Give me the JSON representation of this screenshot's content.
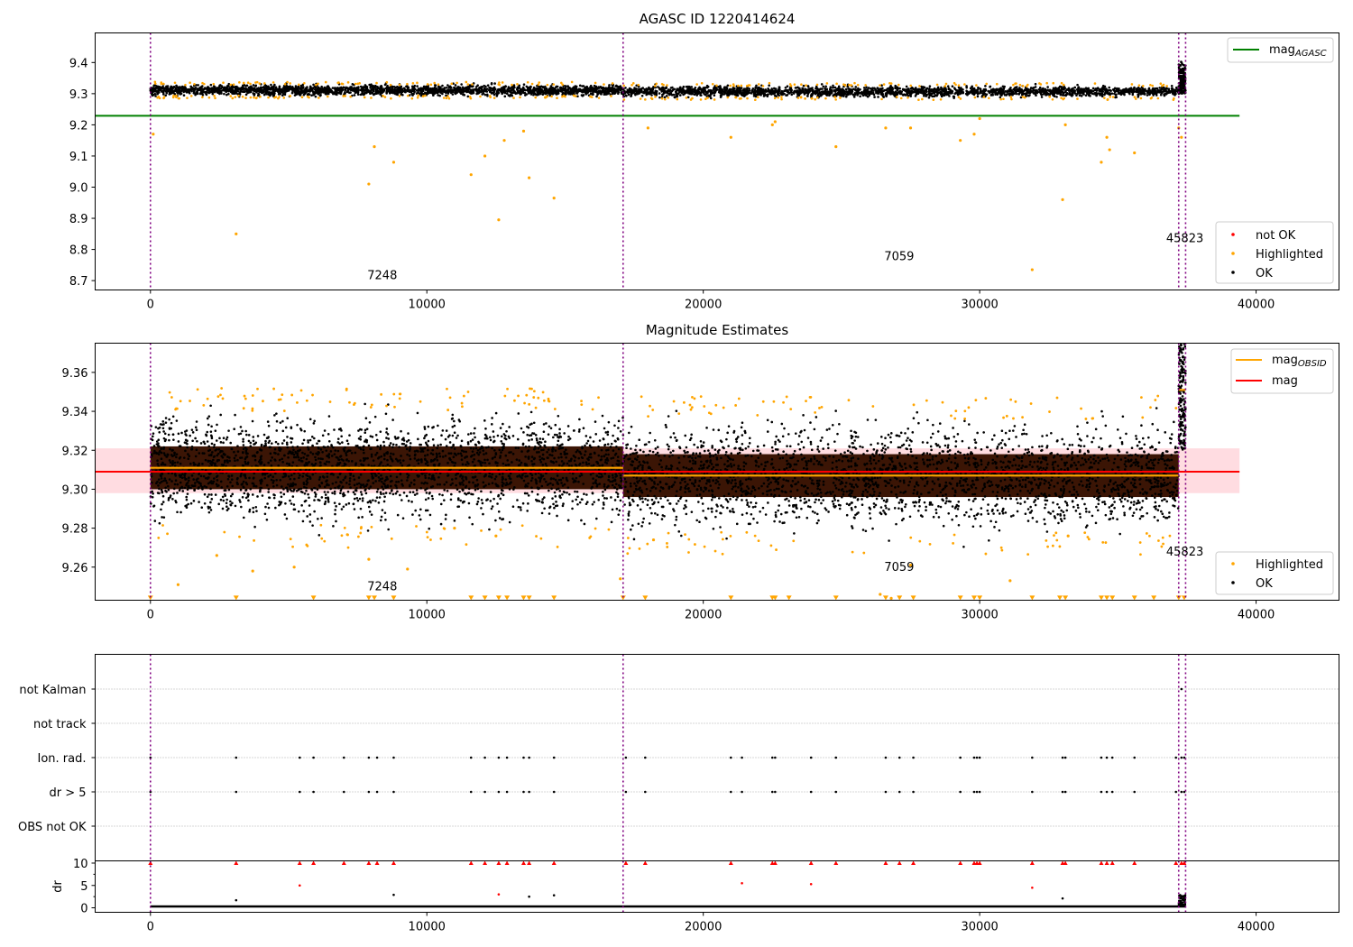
{
  "chart_data": [
    {
      "type": "scatter",
      "title": "AGASC ID 1220414624",
      "xlim": [
        -2000,
        43000
      ],
      "ylim": [
        8.67,
        9.495
      ],
      "xticks": [
        "0",
        "10000",
        "20000",
        "30000",
        "40000"
      ],
      "xtick_values": [
        0,
        10000,
        20000,
        30000,
        40000
      ],
      "yticks": [
        "8.7",
        "8.8",
        "8.9",
        "9.0",
        "9.1",
        "9.2",
        "9.3",
        "9.4"
      ],
      "ytick_values": [
        8.7,
        8.8,
        8.9,
        9.0,
        9.1,
        9.2,
        9.3,
        9.4
      ],
      "obs_boundaries": [
        0,
        17100,
        37200,
        37450
      ],
      "obs_labels": [
        {
          "text": "7248",
          "x": 8500,
          "y": 8.705
        },
        {
          "text": "7059",
          "x": 27200,
          "y": 8.765
        },
        {
          "text": "45823",
          "x": 37400,
          "y": 8.823
        }
      ],
      "agasc_mag": 9.229,
      "agasc_line_x": [
        -2000,
        39400
      ],
      "ok_bands": [
        {
          "x": [
            0,
            17100
          ],
          "center": 9.311,
          "spread": 0.013
        },
        {
          "x": [
            17100,
            37200
          ],
          "center": 9.307,
          "spread": 0.013
        }
      ],
      "ok_burst": {
        "x": [
          37200,
          37450
        ],
        "y": [
          9.3,
          9.42
        ]
      },
      "highlighted_points": [
        [
          100,
          9.17
        ],
        [
          3100,
          8.85
        ],
        [
          7900,
          9.01
        ],
        [
          8100,
          9.13
        ],
        [
          8800,
          9.08
        ],
        [
          11600,
          9.04
        ],
        [
          12100,
          9.1
        ],
        [
          12800,
          9.15
        ],
        [
          12600,
          8.895
        ],
        [
          13500,
          9.18
        ],
        [
          13700,
          9.03
        ],
        [
          14600,
          8.965
        ],
        [
          18000,
          9.19
        ],
        [
          21000,
          9.16
        ],
        [
          22500,
          9.2
        ],
        [
          22600,
          9.21
        ],
        [
          24800,
          9.13
        ],
        [
          26600,
          9.19
        ],
        [
          27500,
          9.19
        ],
        [
          29300,
          9.15
        ],
        [
          29800,
          9.17
        ],
        [
          30000,
          9.22
        ],
        [
          31900,
          8.735
        ],
        [
          33000,
          8.96
        ],
        [
          33100,
          9.2
        ],
        [
          34400,
          9.08
        ],
        [
          34600,
          9.16
        ],
        [
          34700,
          9.12
        ],
        [
          35600,
          9.11
        ],
        [
          37200,
          9.19
        ],
        [
          37300,
          9.16
        ]
      ],
      "legend": {
        "items": [
          {
            "label": "mag",
            "sub": "AGASC",
            "kind": "line",
            "color": "#008000"
          },
          {
            "label": "not OK",
            "kind": "point",
            "color": "#ff0000"
          },
          {
            "label": "Highlighted",
            "kind": "point",
            "color": "#ffa500"
          },
          {
            "label": "OK",
            "kind": "point",
            "color": "#000000"
          }
        ]
      }
    },
    {
      "type": "scatter",
      "title": "Magnitude Estimates",
      "xlim": [
        -2000,
        43000
      ],
      "ylim": [
        9.243,
        9.375
      ],
      "xticks": [
        "0",
        "10000",
        "20000",
        "30000",
        "40000"
      ],
      "xtick_values": [
        0,
        10000,
        20000,
        30000,
        40000
      ],
      "yticks": [
        "9.26",
        "9.28",
        "9.30",
        "9.32",
        "9.34",
        "9.36"
      ],
      "ytick_values": [
        9.26,
        9.28,
        9.3,
        9.32,
        9.34,
        9.36
      ],
      "obs_boundaries": [
        0,
        17100,
        37200,
        37450
      ],
      "obs_labels": [
        {
          "text": "7248",
          "x": 8500,
          "y": 9.248
        },
        {
          "text": "7059",
          "x": 27200,
          "y": 9.258
        },
        {
          "text": "45823",
          "x": 37400,
          "y": 9.266
        }
      ],
      "mag_mean": 9.309,
      "mag_band": [
        9.298,
        9.321
      ],
      "mag_line_x": [
        -2000,
        39400
      ],
      "obsid_mags": [
        {
          "x": [
            0,
            17100
          ],
          "mag": 9.311
        },
        {
          "x": [
            17100,
            37200
          ],
          "mag": 9.307
        },
        {
          "x": [
            37200,
            37450
          ],
          "mag": 9.351
        }
      ],
      "ok_bands": [
        {
          "x": [
            0,
            17100
          ],
          "center": 9.311,
          "spread": 0.012
        },
        {
          "x": [
            17100,
            37200
          ],
          "center": 9.307,
          "spread": 0.012
        }
      ],
      "ok_burst": {
        "x": [
          37200,
          37450
        ],
        "y": [
          9.32,
          9.375
        ]
      },
      "highlighted_points": [
        [
          1000,
          9.251
        ],
        [
          2400,
          9.266
        ],
        [
          3700,
          9.258
        ],
        [
          5200,
          9.26
        ],
        [
          7900,
          9.264
        ],
        [
          9300,
          9.259
        ],
        [
          11000,
          9.28
        ],
        [
          12500,
          9.276
        ],
        [
          17000,
          9.254
        ],
        [
          18200,
          9.274
        ],
        [
          26400,
          9.246
        ],
        [
          26800,
          9.244
        ],
        [
          27500,
          9.261
        ],
        [
          31100,
          9.253
        ],
        [
          33200,
          9.276
        ]
      ],
      "clipped_low_points": [
        [
          0,
          9.244
        ],
        [
          3100,
          9.244
        ],
        [
          5900,
          9.244
        ],
        [
          7900,
          9.244
        ],
        [
          8100,
          9.244
        ],
        [
          8800,
          9.244
        ],
        [
          11600,
          9.244
        ],
        [
          12100,
          9.244
        ],
        [
          12600,
          9.244
        ],
        [
          12900,
          9.244
        ],
        [
          13500,
          9.244
        ],
        [
          13700,
          9.244
        ],
        [
          14600,
          9.244
        ],
        [
          17100,
          9.244
        ],
        [
          17900,
          9.244
        ],
        [
          21000,
          9.244
        ],
        [
          22500,
          9.244
        ],
        [
          22600,
          9.244
        ],
        [
          23100,
          9.244
        ],
        [
          24800,
          9.244
        ],
        [
          26600,
          9.244
        ],
        [
          27100,
          9.244
        ],
        [
          27600,
          9.244
        ],
        [
          29300,
          9.244
        ],
        [
          29800,
          9.244
        ],
        [
          30000,
          9.244
        ],
        [
          31900,
          9.244
        ],
        [
          32900,
          9.244
        ],
        [
          33100,
          9.244
        ],
        [
          34400,
          9.244
        ],
        [
          34600,
          9.244
        ],
        [
          34800,
          9.244
        ],
        [
          35600,
          9.244
        ],
        [
          36300,
          9.244
        ],
        [
          37200,
          9.244
        ],
        [
          37400,
          9.244
        ]
      ],
      "legend": {
        "items": [
          {
            "label": "mag",
            "sub": "OBSID",
            "kind": "line",
            "color": "#ffa500"
          },
          {
            "label": "mag",
            "kind": "line",
            "color": "#ff0000"
          },
          {
            "label": "Highlighted",
            "kind": "point",
            "color": "#ffa500"
          },
          {
            "label": "OK",
            "kind": "point",
            "color": "#000000"
          }
        ]
      }
    },
    {
      "type": "scatter",
      "xlim": [
        -2000,
        43000
      ],
      "categories": [
        "not Kalman",
        "not track",
        "Ion. rad.",
        "dr > 5",
        "OBS not OK"
      ],
      "obs_boundaries": [
        0,
        17100,
        37200,
        37450
      ],
      "flag_x": [
        0,
        3100,
        5400,
        5900,
        7000,
        7900,
        8200,
        8800,
        11600,
        12100,
        12600,
        12900,
        13500,
        13700,
        14600,
        17200,
        17900,
        21000,
        21400,
        22500,
        22600,
        23900,
        24800,
        26600,
        27100,
        27600,
        29300,
        29800,
        29900,
        30000,
        31900,
        33000,
        33100,
        34400,
        34600,
        34800,
        35600,
        37100,
        37300,
        37400
      ],
      "not_kalman_x": [
        37300
      ]
    },
    {
      "type": "scatter",
      "xlim": [
        -2000,
        43000
      ],
      "ylim": [
        -1,
        10.5
      ],
      "ylabel": "dr",
      "xticks": [
        "0",
        "10000",
        "20000",
        "30000",
        "40000"
      ],
      "xtick_values": [
        0,
        10000,
        20000,
        30000,
        40000
      ],
      "yticks": [
        "0",
        "5",
        "10"
      ],
      "ytick_values": [
        0,
        5,
        10
      ],
      "obs_boundaries": [
        0,
        17100,
        37200,
        37450
      ],
      "clipped_x": [
        0,
        3100,
        5400,
        5900,
        7000,
        7900,
        8200,
        8800,
        11600,
        12100,
        12600,
        12900,
        13500,
        13700,
        14600,
        17200,
        17900,
        21000,
        22500,
        22600,
        23900,
        24800,
        26600,
        27100,
        27600,
        29300,
        29800,
        29900,
        30000,
        31900,
        33000,
        33100,
        34400,
        34600,
        34800,
        35600,
        37100,
        37300,
        37400
      ],
      "high_points": [
        [
          5400,
          5.0
        ],
        [
          12600,
          3.0
        ],
        [
          21400,
          5.5
        ],
        [
          23900,
          5.3
        ],
        [
          31900,
          4.5
        ]
      ],
      "mid_points": [
        [
          3100,
          1.7
        ],
        [
          8800,
          2.9
        ],
        [
          13700,
          2.5
        ],
        [
          14600,
          2.8
        ],
        [
          33000,
          2.1
        ]
      ],
      "baseline": 0.3
    }
  ]
}
